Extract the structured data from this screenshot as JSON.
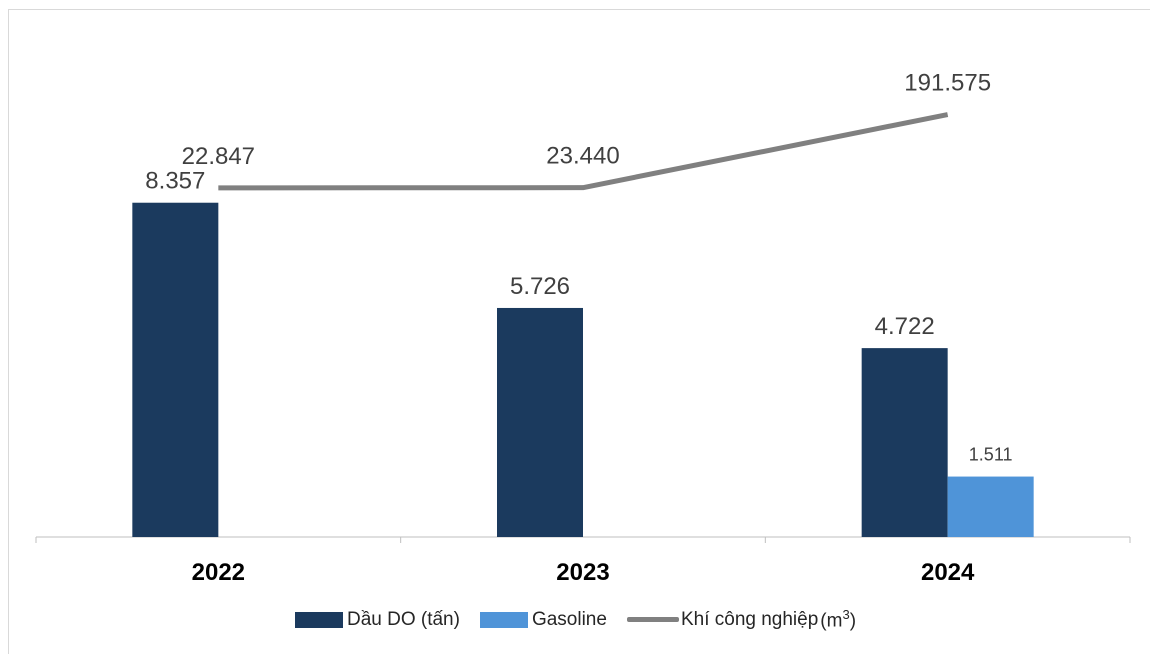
{
  "chart_data": {
    "type": "bar",
    "categories": [
      "2022",
      "2023",
      "2024"
    ],
    "series": [
      {
        "name": "Dầu DO (tấn)",
        "kind": "bar",
        "color": "#1b3a5e",
        "values": [
          8357,
          5726,
          4722
        ],
        "labels": [
          "8.357",
          "5.726",
          "4.722"
        ]
      },
      {
        "name": "Gasoline",
        "kind": "bar",
        "color": "#4f94d8",
        "values": [
          null,
          null,
          1511
        ],
        "labels": [
          "",
          "",
          "1.511"
        ]
      },
      {
        "name": "Khí công nghiệp",
        "unit_base": "m",
        "unit_exp": "3",
        "kind": "line",
        "axis": "secondary",
        "color": "#808080",
        "values": [
          22847,
          23440,
          191575
        ],
        "labels": [
          "22.847",
          "23.440",
          "191.575"
        ]
      }
    ],
    "ylim": [
      0,
      10000
    ],
    "secondary_ylim": [
      -780000,
      455000
    ],
    "grid": false,
    "legend": "bottom"
  }
}
